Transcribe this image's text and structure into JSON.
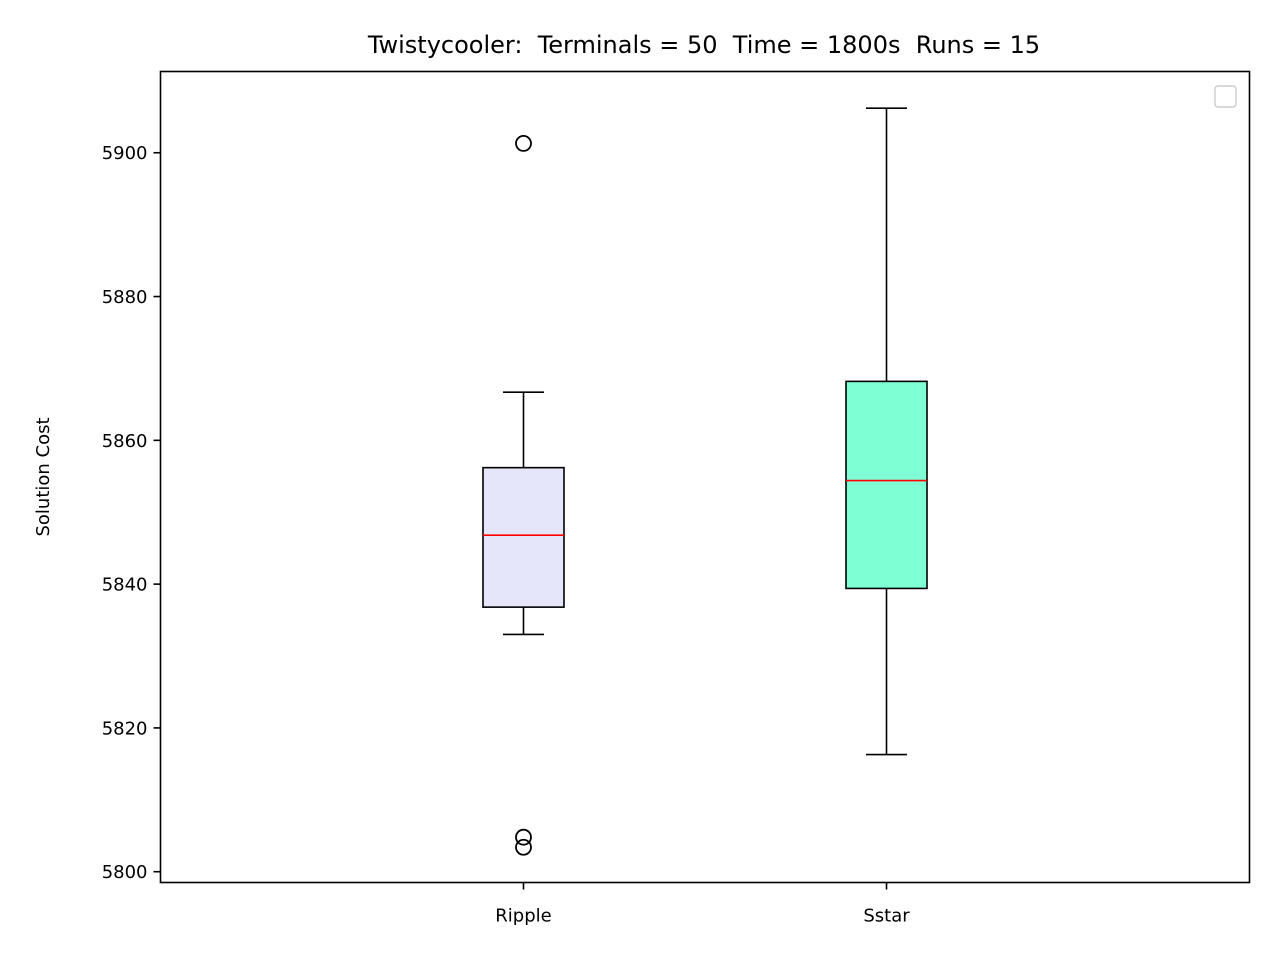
{
  "chart_data": {
    "type": "box",
    "title": "Twistycooler:  Terminals = 50  Time = 1800s  Runs = 15",
    "xlabel": "",
    "ylabel": "Solution Cost",
    "ylim": [
      5798.5,
      5911.3
    ],
    "yticks": [
      5800,
      5820,
      5840,
      5860,
      5880,
      5900
    ],
    "ytick_labels": [
      "5800",
      "5820",
      "5840",
      "5860",
      "5880",
      "5900"
    ],
    "categories": [
      "Ripple",
      "Sstar"
    ],
    "grid": false,
    "legend": {
      "placement": "top-right",
      "entries": []
    },
    "boxes": [
      {
        "label": "Ripple",
        "whisker_low": 5833.0,
        "q1": 5836.8,
        "median": 5846.8,
        "q3": 5856.2,
        "whisker_high": 5866.7,
        "outliers": [
          5901.3,
          5804.8,
          5803.4
        ],
        "fill": "#e6e6fa",
        "median_color": "#ff0000"
      },
      {
        "label": "Sstar",
        "whisker_low": 5816.3,
        "q1": 5839.4,
        "median": 5854.4,
        "q3": 5868.2,
        "whisker_high": 5906.2,
        "outliers": [],
        "fill": "#7fffd4",
        "median_color": "#ff0000"
      }
    ]
  }
}
